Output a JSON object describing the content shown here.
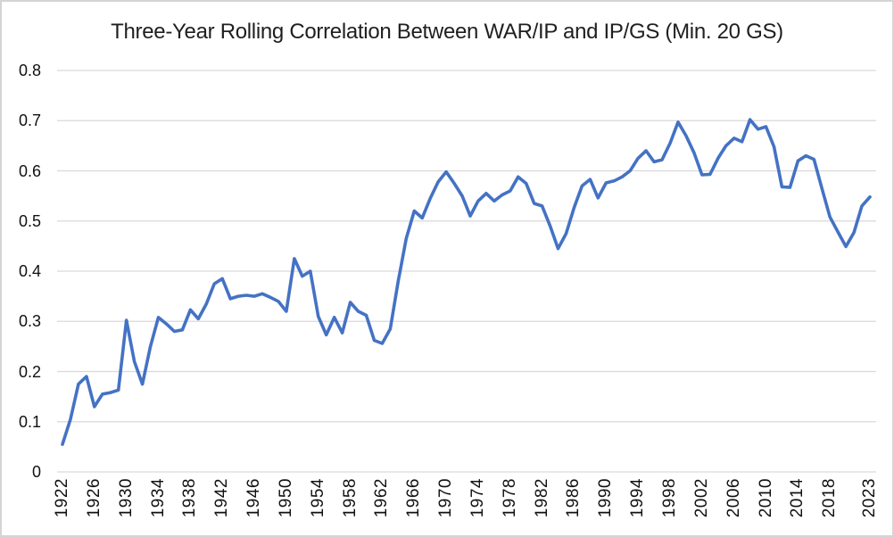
{
  "chart_data": {
    "type": "line",
    "title": "Three-Year Rolling Correlation Between WAR/IP and IP/GS (Min. 20 GS)",
    "xlabel": "",
    "ylabel": "",
    "x": [
      1922,
      1923,
      1924,
      1925,
      1926,
      1927,
      1928,
      1929,
      1930,
      1931,
      1932,
      1933,
      1934,
      1935,
      1936,
      1937,
      1938,
      1939,
      1940,
      1941,
      1942,
      1943,
      1944,
      1945,
      1946,
      1947,
      1948,
      1949,
      1950,
      1951,
      1952,
      1953,
      1954,
      1955,
      1956,
      1957,
      1958,
      1959,
      1960,
      1961,
      1962,
      1963,
      1964,
      1965,
      1966,
      1967,
      1968,
      1969,
      1970,
      1971,
      1972,
      1973,
      1974,
      1975,
      1976,
      1977,
      1978,
      1979,
      1980,
      1981,
      1982,
      1983,
      1984,
      1985,
      1986,
      1987,
      1988,
      1989,
      1990,
      1991,
      1992,
      1993,
      1994,
      1995,
      1996,
      1997,
      1998,
      1999,
      2000,
      2001,
      2002,
      2003,
      2004,
      2005,
      2006,
      2007,
      2008,
      2009,
      2010,
      2011,
      2012,
      2013,
      2014,
      2015,
      2016,
      2017,
      2018,
      2019,
      2020,
      2021,
      2022,
      2023
    ],
    "series": [
      {
        "name": "Three-year rolling correlation",
        "values": [
          0.055,
          0.105,
          0.175,
          0.19,
          0.13,
          0.155,
          0.158,
          0.163,
          0.302,
          0.22,
          0.175,
          0.25,
          0.308,
          0.295,
          0.28,
          0.283,
          0.323,
          0.305,
          0.335,
          0.375,
          0.385,
          0.345,
          0.35,
          0.352,
          0.35,
          0.355,
          0.348,
          0.34,
          0.32,
          0.425,
          0.39,
          0.4,
          0.31,
          0.273,
          0.308,
          0.277,
          0.338,
          0.32,
          0.312,
          0.262,
          0.256,
          0.285,
          0.38,
          0.465,
          0.52,
          0.506,
          0.545,
          0.578,
          0.598,
          0.575,
          0.55,
          0.51,
          0.54,
          0.555,
          0.54,
          0.552,
          0.56,
          0.588,
          0.575,
          0.535,
          0.53,
          0.49,
          0.445,
          0.475,
          0.527,
          0.57,
          0.583,
          0.546,
          0.576,
          0.58,
          0.588,
          0.6,
          0.625,
          0.64,
          0.618,
          0.622,
          0.655,
          0.697,
          0.67,
          0.636,
          0.592,
          0.593,
          0.625,
          0.65,
          0.665,
          0.658,
          0.702,
          0.683,
          0.688,
          0.648,
          0.568,
          0.567,
          0.62,
          0.63,
          0.623,
          0.565,
          0.508,
          0.478,
          0.449,
          0.477,
          0.53,
          0.548
        ]
      }
    ],
    "x_tick_labels": [
      "1922",
      "1926",
      "1930",
      "1934",
      "1938",
      "1942",
      "1946",
      "1950",
      "1954",
      "1958",
      "1962",
      "1966",
      "1970",
      "1974",
      "1978",
      "1982",
      "1986",
      "1990",
      "1994",
      "1998",
      "2002",
      "2006",
      "2010",
      "2014",
      "2018",
      "2023"
    ],
    "x_tick_years": [
      1922,
      1926,
      1930,
      1934,
      1938,
      1942,
      1946,
      1950,
      1954,
      1958,
      1962,
      1966,
      1970,
      1974,
      1978,
      1982,
      1986,
      1990,
      1994,
      1998,
      2002,
      2006,
      2010,
      2014,
      2018,
      2023
    ],
    "y_ticks": [
      0,
      0.1,
      0.2,
      0.3,
      0.4,
      0.5,
      0.6,
      0.7,
      0.8
    ],
    "y_tick_labels": [
      "0",
      "0.1",
      "0.2",
      "0.3",
      "0.4",
      "0.5",
      "0.6",
      "0.7",
      "0.8"
    ],
    "ylim": [
      0,
      0.8
    ],
    "grid": "horizontal",
    "legend": "none",
    "colors": {
      "line": "#4472C4",
      "gridline": "#D9D9D9",
      "text": "#111111",
      "title_text": "#1F1F1F",
      "background": "#FFFFFF",
      "frame_border": "#D4D4D4"
    }
  }
}
